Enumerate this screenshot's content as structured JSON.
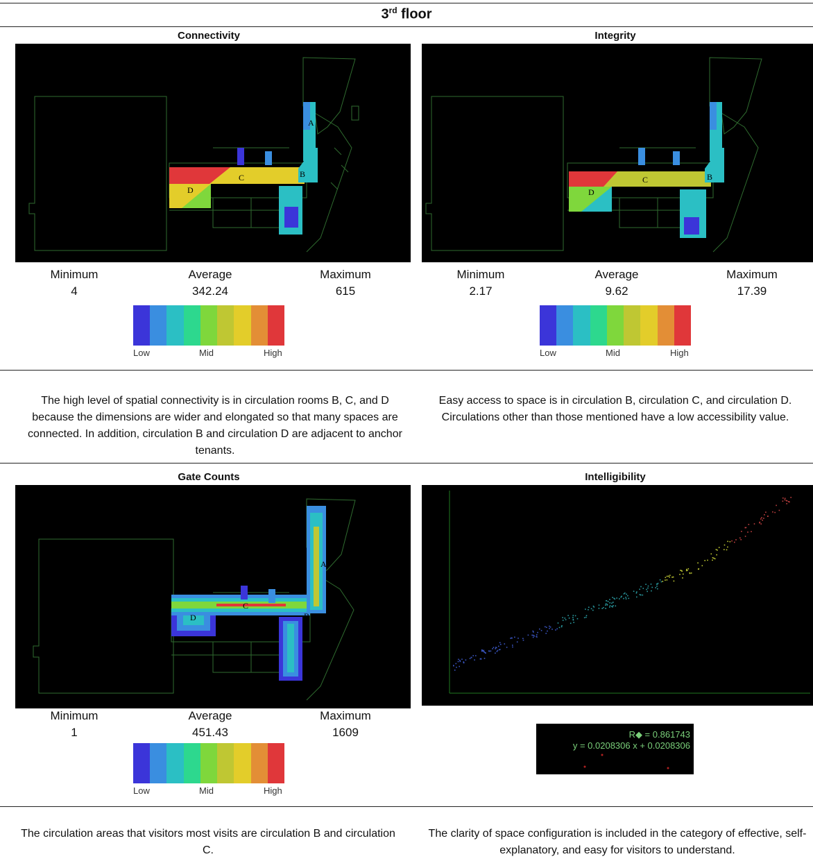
{
  "page": {
    "title_main": "3",
    "title_sup": "rd",
    "title_rest": " floor"
  },
  "legend": {
    "low": "Low",
    "mid": "Mid",
    "high": "High",
    "colors": [
      "#3b35d9",
      "#3a8ee0",
      "#2bbfc4",
      "#2dd88e",
      "#7fd73c",
      "#bfc733",
      "#e3cd2a",
      "#e38e36",
      "#e0373a"
    ]
  },
  "stat_labels": {
    "minimum": "Minimum",
    "average": "Average",
    "maximum": "Maximum"
  },
  "connectivity": {
    "heading": "Connectivity",
    "min": "4",
    "avg": "342.24",
    "max": "615",
    "desc": "The high level of spatial connectivity is in circulation rooms B, C, and D because the dimensions are wider and elongated so that many spaces are connected. In addition, circulation B and circulation D are adjacent to anchor tenants."
  },
  "integrity": {
    "heading": "Integrity",
    "min": "2.17",
    "avg": "9.62",
    "max": "17.39",
    "desc": "Easy access to space is in circulation B, circulation C, and circulation D. Circulations other than those mentioned have a low accessibility value."
  },
  "gate_counts": {
    "heading": "Gate Counts",
    "min": "1",
    "avg": "451.43",
    "max": "1609",
    "desc": "The circulation areas that visitors most visits are circulation B and circulation C."
  },
  "intelligibility": {
    "heading": "Intelligibility",
    "r2": "R◆ = 0.861743",
    "equation": "y = 0.0208306 x + 0.0208306",
    "desc": "The clarity of space configuration is included in the category of effective, self-explanatory, and easy for visitors to understand."
  },
  "map_labels": {
    "a": "A",
    "b": "B",
    "c": "C",
    "d": "D"
  }
}
